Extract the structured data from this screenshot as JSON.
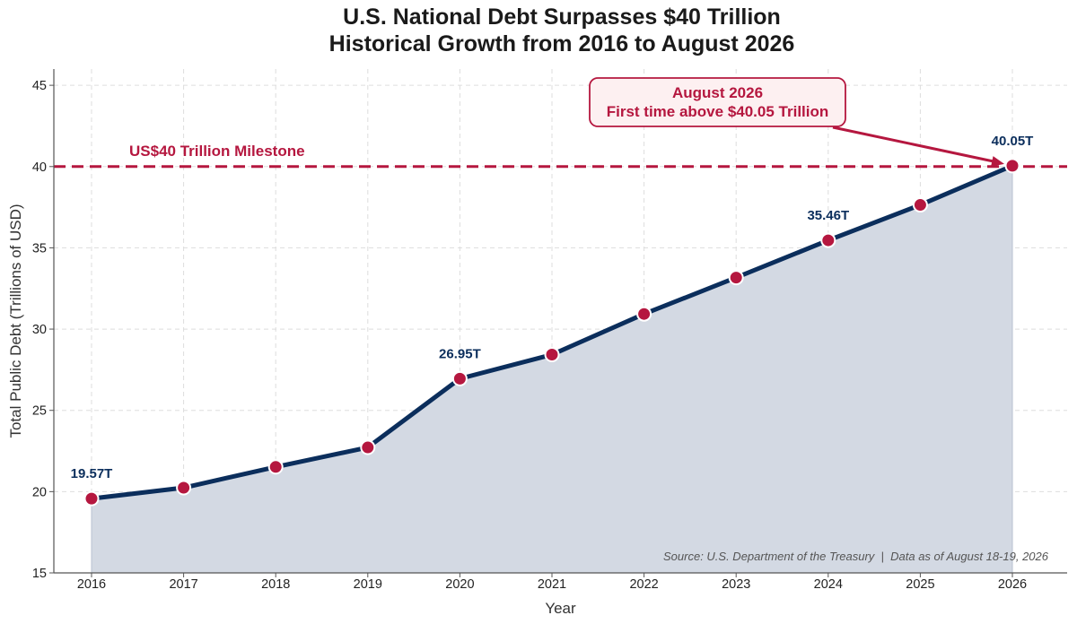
{
  "chart_data": {
    "type": "area",
    "title": "U.S. National Debt Surpasses $40 Trillion",
    "subtitle": "Historical Growth from 2016 to August 2026",
    "xlabel": "Year",
    "ylabel": "Total Public Debt (Trillions of USD)",
    "x": [
      2016,
      2017,
      2018,
      2019,
      2020,
      2021,
      2022,
      2023,
      2024,
      2025,
      2026
    ],
    "series": [
      {
        "values": [
          19.57,
          20.24,
          21.52,
          22.72,
          26.95,
          28.43,
          30.93,
          33.17,
          35.46,
          37.64,
          40.05
        ]
      }
    ],
    "ylim": [
      15,
      46
    ],
    "yticks": [
      15,
      20,
      25,
      30,
      35,
      40,
      45
    ],
    "grid": true,
    "data_labels": [
      {
        "x": 2016,
        "text": "19.57T"
      },
      {
        "x": 2020,
        "text": "26.95T"
      },
      {
        "x": 2024,
        "text": "35.46T"
      },
      {
        "x": 2026,
        "text": "40.05T"
      }
    ],
    "reference_line": {
      "y": 40,
      "label": "US$40 Trillion Milestone"
    },
    "annotation": {
      "x": 2026,
      "y": 40.05,
      "lines": [
        "August 2026",
        "First time above $40.05 Trillion"
      ]
    },
    "source": "Source: U.S. Department of the Treasury  |  Data as of August 18-19, 2026",
    "colors": {
      "line": "#0b2e5c",
      "fill": "#d3d9e3",
      "marker": "#b5173f",
      "reference": "#b5173f",
      "annotation_bg": "#fdf0f1"
    }
  }
}
